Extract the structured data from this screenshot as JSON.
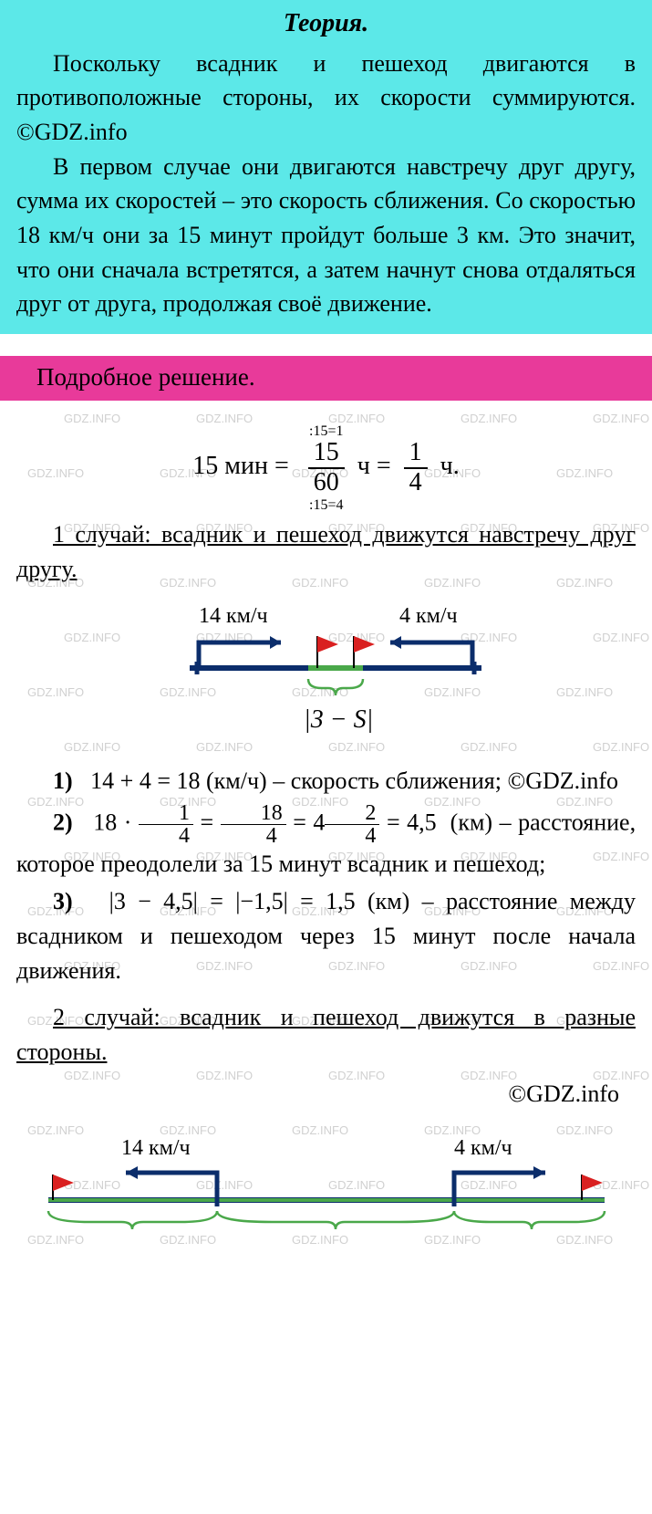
{
  "watermark_text": "GDZ.INFO",
  "watermark_color": "rgba(120,120,120,0.35)",
  "theory": {
    "title": "Теория.",
    "bg_color": "#5ce8e8",
    "p1": "Поскольку всадник и пешеход двигаются в противоположные стороны, их скорости суммируются. ©GDZ.info",
    "p2": "В первом случае они двигаются навстречу друг другу, сумма их скоростей – это скорость сближения. Со скоростью 18 км/ч они за 15 минут пройдут больше 3 км. Это значит, что они сначала встретятся, а затем начнут снова отдаляться друг от друга, продолжая своё движение."
  },
  "solution_header": {
    "text": "Подробное решение.",
    "bg_color": "#e83a9a"
  },
  "conversion": {
    "time_label": "15 мин =",
    "frac1_num": "15",
    "frac1_den": "60",
    "frac1_above": ":15=1",
    "frac1_below": ":15=4",
    "unit1": "ч =",
    "frac2_num": "1",
    "frac2_den": "4",
    "unit2": "ч."
  },
  "case1": {
    "label": "1 случай: всадник и пешеход движутся навстречу друг другу.",
    "diagram": {
      "speed_left": "14 км/ч",
      "speed_right": "4 км/ч",
      "center_label": "|3 − S|",
      "line_color": "#0b2d6b",
      "flag_color": "#d92020",
      "brace_color": "#4aa84a"
    },
    "steps": [
      {
        "n": "1)",
        "expr": "14 + 4 = 18",
        "unit": "(км/ч)",
        "desc": "– скорость сближения; ©GDZ.info"
      },
      {
        "n": "2)",
        "pre": "18 ·",
        "f1n": "1",
        "f1d": "4",
        "mid1": "=",
        "f2n": "18",
        "f2d": "4",
        "mid2": "= 4",
        "f3n": "2",
        "f3d": "4",
        "mid3": "= 4,5",
        "unit": "(км)",
        "desc": "– расстояние, которое преодолели за 15 минут всадник и пешеход;"
      },
      {
        "n": "3)",
        "expr": "|3 − 4,5| = |−1,5| = 1,5",
        "unit": "(км)",
        "desc": "– расстояние между всадником и пешеходом через 15 минут после начала движения."
      }
    ]
  },
  "case2": {
    "label": "2 случай: всадник и пешеход движутся в разные стороны.",
    "copyright": "©GDZ.info",
    "diagram": {
      "speed_left": "14 км/ч",
      "speed_right": "4 км/ч",
      "line_color": "#0b2d6b",
      "flag_color": "#d92020",
      "brace_color": "#4aa84a"
    }
  }
}
